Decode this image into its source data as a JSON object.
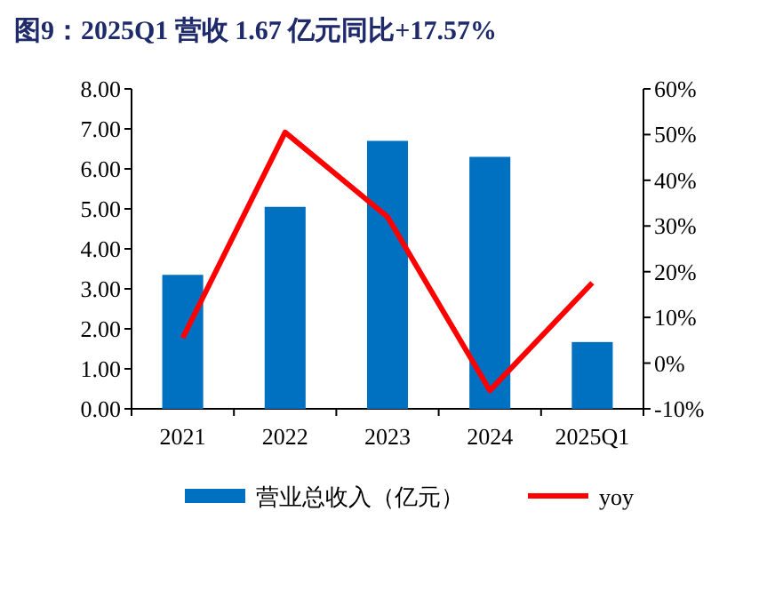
{
  "chart_data": {
    "type": "bar",
    "title": "图9：2025Q1 营收 1.67 亿元同比+17.57%",
    "categories": [
      "2021",
      "2022",
      "2023",
      "2024",
      "2025Q1"
    ],
    "series": [
      {
        "name": "营业总收入（亿元）",
        "color": "#0070c0",
        "values": [
          3.35,
          5.05,
          6.7,
          6.3,
          1.67
        ]
      },
      {
        "name": "yoy",
        "type": "line",
        "axis": "y2",
        "color": "#ff0000",
        "values": [
          5.5,
          50.5,
          32,
          -6,
          17.57
        ]
      }
    ],
    "ylim": [
      0,
      8
    ],
    "yticks": [
      {
        "value": 0,
        "label": "0.00"
      },
      {
        "value": 1,
        "label": "1.00"
      },
      {
        "value": 2,
        "label": "2.00"
      },
      {
        "value": 3,
        "label": "3.00"
      },
      {
        "value": 4,
        "label": "4.00"
      },
      {
        "value": 5,
        "label": "5.00"
      },
      {
        "value": 6,
        "label": "6.00"
      },
      {
        "value": 7,
        "label": "7.00"
      },
      {
        "value": 8,
        "label": "8.00"
      }
    ],
    "y2lim": [
      -10,
      60
    ],
    "y2ticks": [
      {
        "value": -10,
        "label": "-10%"
      },
      {
        "value": 0,
        "label": "0%"
      },
      {
        "value": 10,
        "label": "10%"
      },
      {
        "value": 20,
        "label": "20%"
      },
      {
        "value": 30,
        "label": "30%"
      },
      {
        "value": 40,
        "label": "40%"
      },
      {
        "value": 50,
        "label": "50%"
      },
      {
        "value": 60,
        "label": "60%"
      }
    ],
    "legend": "bottom",
    "grid": false
  }
}
